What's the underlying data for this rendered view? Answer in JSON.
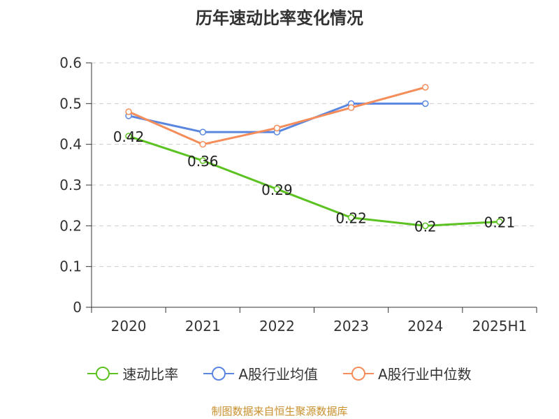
{
  "chart_data": {
    "type": "line",
    "title": "历年速动比率变化情况",
    "categories": [
      "2020",
      "2021",
      "2022",
      "2023",
      "2024",
      "2025H1"
    ],
    "ylim": [
      0,
      0.6
    ],
    "yticks": [
      "0",
      "0.1",
      "0.2",
      "0.3",
      "0.4",
      "0.5",
      "0.6"
    ],
    "grid": true,
    "legend_position": "bottom",
    "series": [
      {
        "name": "速动比率",
        "color": "#5cc222",
        "values": [
          0.42,
          0.36,
          0.29,
          0.22,
          0.2,
          0.21
        ],
        "labels": [
          "0.42",
          "0.36",
          "0.29",
          "0.22",
          "0.2",
          "0.21"
        ]
      },
      {
        "name": "A股行业均值",
        "color": "#5b86e0",
        "values": [
          0.47,
          0.43,
          0.43,
          0.5,
          0.5,
          null
        ]
      },
      {
        "name": "A股行业中位数",
        "color": "#f48d5a",
        "values": [
          0.48,
          0.4,
          0.44,
          0.49,
          0.54,
          null
        ]
      }
    ]
  },
  "source": "制图数据来自恒生聚源数据库"
}
